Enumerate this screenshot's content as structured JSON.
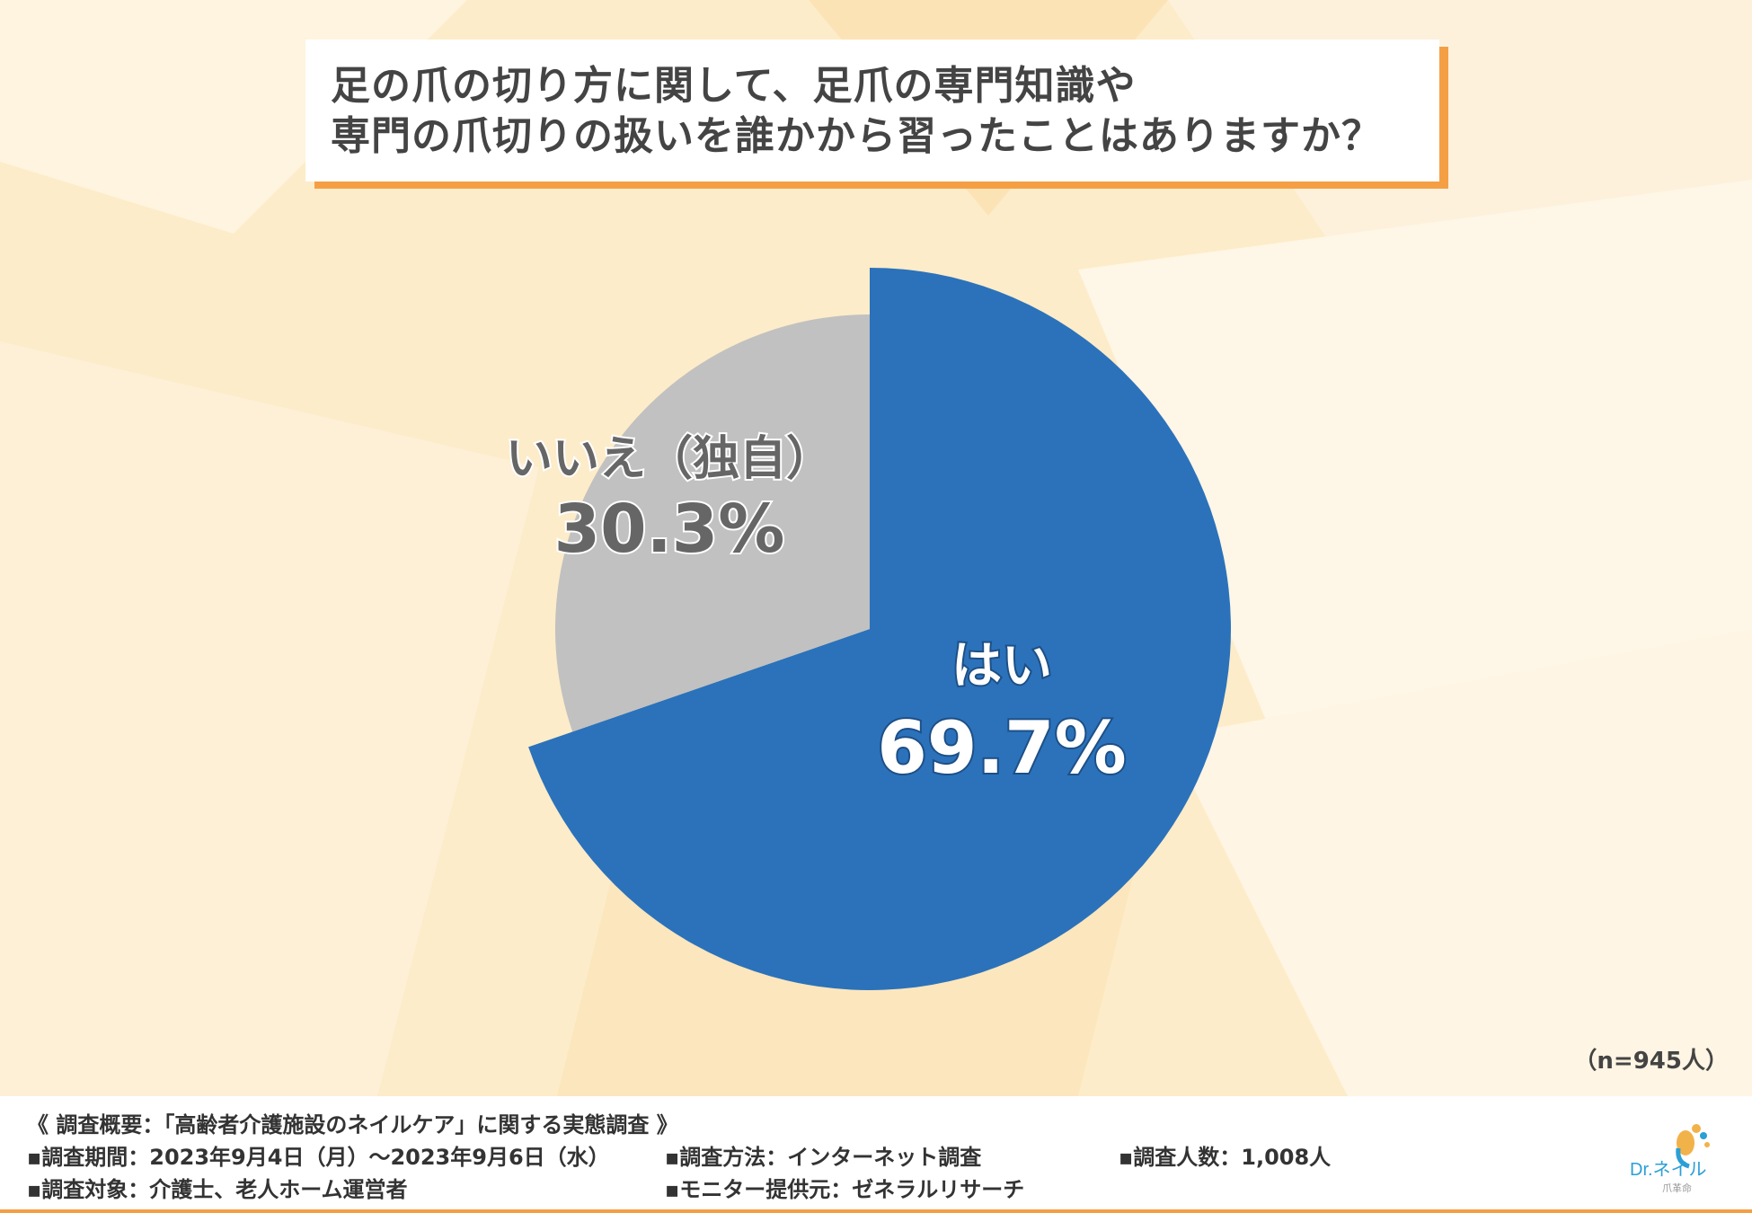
{
  "title": {
    "line1": "足の爪の切り方に関して、足爪の専門知識や",
    "line2": "専門の爪切りの扱いを誰かから習ったことはありますか？"
  },
  "chart_data": {
    "type": "pie",
    "slices": [
      {
        "label": "はい",
        "percent_label": "69.7%",
        "value": 69.7,
        "color": "#2b72bb"
      },
      {
        "label": "いいえ（独自）",
        "percent_label": "30.3%",
        "value": 30.3,
        "color": "#c1c1c1"
      }
    ],
    "title": "足の爪の切り方に関して、足爪の専門知識や専門の爪切りの扱いを誰かから習ったことはありますか？",
    "n_label": "（n=945人）"
  },
  "footer": {
    "overview": "《 調査概要：「高齢者介護施設のネイルケア」に関する実態調査 》",
    "period": "▪調査期間：2023年9月4日（月）～2023年9月6日（水）",
    "method": "▪調査方法：インターネット調査",
    "count": "▪調査人数：1,008人",
    "target": "▪調査対象：介護士、老人ホーム運営者",
    "provider": "▪モニター提供元：ゼネラルリサーチ"
  },
  "logo": {
    "main": "Dr.ネイル",
    "sub": "爪革命",
    "color": "#2b9fd6"
  },
  "colors": {
    "accent": "#f59f45",
    "yes": "#2b72bb",
    "no": "#c1c1c1"
  }
}
